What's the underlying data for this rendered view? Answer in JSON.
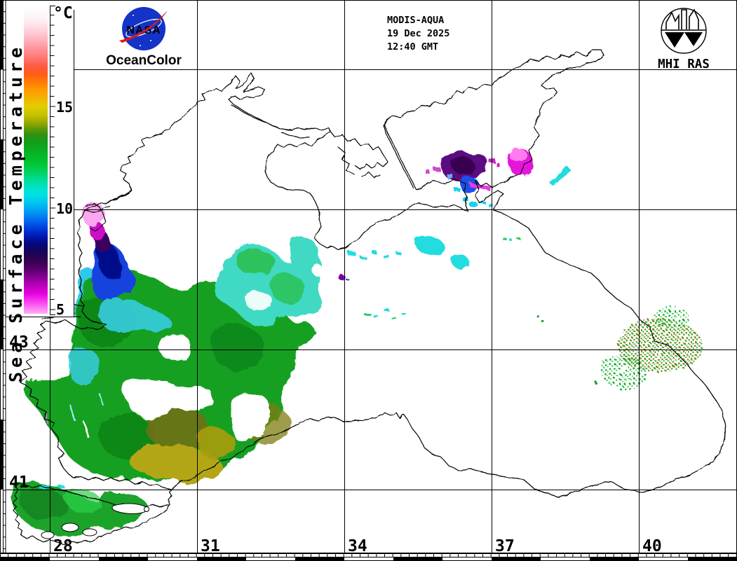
{
  "title_block": {
    "satellite": "MODIS-AQUA",
    "date": "19 Dec 2025",
    "time": "12:40 GMT"
  },
  "branding": {
    "nasa_text": "NASA",
    "oceancolor": "OceanColor",
    "mhi_label": "MHI RAS"
  },
  "colorbar": {
    "title": "Sea Surface Temperature",
    "unit": "°C",
    "tick_labels": [
      "15",
      "10",
      "5"
    ],
    "stops": [
      {
        "off": 0.0,
        "c": "#ffffff"
      },
      {
        "off": 0.046,
        "c": "#fdeef2"
      },
      {
        "off": 0.086,
        "c": "#ffc9d4"
      },
      {
        "off": 0.126,
        "c": "#ff9da8"
      },
      {
        "off": 0.159,
        "c": "#ff7e7e"
      },
      {
        "off": 0.192,
        "c": "#ff5a46"
      },
      {
        "off": 0.218,
        "c": "#ff5c14"
      },
      {
        "off": 0.245,
        "c": "#ff7c04"
      },
      {
        "off": 0.271,
        "c": "#ff9b00"
      },
      {
        "off": 0.298,
        "c": "#f2b400"
      },
      {
        "off": 0.324,
        "c": "#e3cd00"
      },
      {
        "off": 0.351,
        "c": "#c6c300"
      },
      {
        "off": 0.377,
        "c": "#9aa800"
      },
      {
        "off": 0.397,
        "c": "#5d9a06"
      },
      {
        "off": 0.417,
        "c": "#2f9013"
      },
      {
        "off": 0.443,
        "c": "#119e1b"
      },
      {
        "off": 0.476,
        "c": "#06b423"
      },
      {
        "off": 0.51,
        "c": "#00c634"
      },
      {
        "off": 0.536,
        "c": "#00d15c"
      },
      {
        "off": 0.563,
        "c": "#00dc95"
      },
      {
        "off": 0.589,
        "c": "#00e2c8"
      },
      {
        "off": 0.609,
        "c": "#00e2e2"
      },
      {
        "off": 0.635,
        "c": "#00c9ef"
      },
      {
        "off": 0.655,
        "c": "#00acf2"
      },
      {
        "off": 0.682,
        "c": "#0081f4"
      },
      {
        "off": 0.708,
        "c": "#0053e8"
      },
      {
        "off": 0.735,
        "c": "#0028cc"
      },
      {
        "off": 0.754,
        "c": "#0013a5"
      },
      {
        "off": 0.774,
        "c": "#05077a"
      },
      {
        "off": 0.794,
        "c": "#150459"
      },
      {
        "off": 0.821,
        "c": "#2e0350"
      },
      {
        "off": 0.847,
        "c": "#4c005e"
      },
      {
        "off": 0.867,
        "c": "#6c0080"
      },
      {
        "off": 0.887,
        "c": "#94009e"
      },
      {
        "off": 0.913,
        "c": "#c400c2"
      },
      {
        "off": 0.933,
        "c": "#e400de"
      },
      {
        "off": 0.96,
        "c": "#f83cee"
      },
      {
        "off": 0.986,
        "c": "#fe86f4"
      },
      {
        "off": 1.0,
        "c": "#ffaef8"
      }
    ]
  },
  "grid": {
    "lon_labels": [
      "28",
      "31",
      "34",
      "37",
      "40"
    ],
    "lat_labels": [
      "43",
      "41"
    ]
  }
}
